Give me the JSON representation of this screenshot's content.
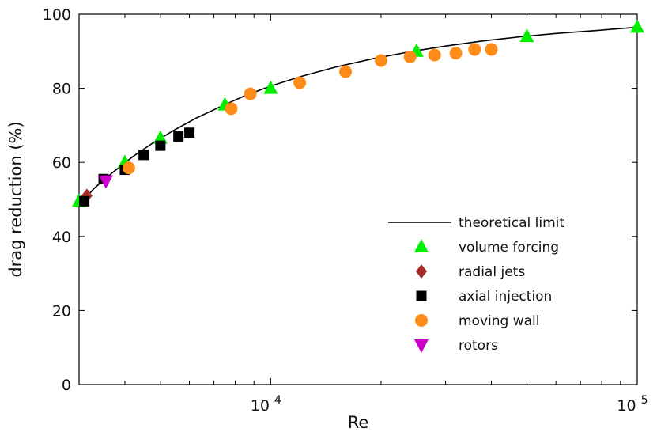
{
  "chart_data": {
    "type": "scatter",
    "title": "",
    "xlabel": "Re",
    "ylabel": "drag reduction (%)",
    "xscale": "log",
    "xlim": [
      3000,
      100000
    ],
    "ylim": [
      0,
      100
    ],
    "xticks": [
      {
        "value": 10000,
        "base": "10",
        "exp": "4"
      },
      {
        "value": 100000,
        "base": "10",
        "exp": "5"
      }
    ],
    "yticks": [
      0,
      20,
      40,
      60,
      80,
      100
    ],
    "grid": false,
    "legend_position": "lower-right",
    "theoretical_limit": {
      "name": "theoretical limit",
      "color": "#000000",
      "x": [
        3000,
        3300,
        3700,
        4200,
        4800,
        5500,
        6300,
        7500,
        8500,
        10000,
        12000,
        15000,
        19000,
        24000,
        30000,
        38000,
        48000,
        60000,
        75000,
        100000
      ],
      "y": [
        48.5,
        53,
        57.2,
        61.5,
        65.4,
        68.9,
        72.1,
        75.6,
        78,
        80.6,
        83.1,
        85.7,
        88,
        89.9,
        91.4,
        92.8,
        93.9,
        94.8,
        95.5,
        96.5
      ]
    },
    "series": [
      {
        "name": "volume forcing",
        "marker": "triangle-up",
        "color": "#00ee00",
        "x": [
          3000,
          4000,
          5000,
          7500,
          10000,
          25000,
          50000,
          100000
        ],
        "y": [
          49.5,
          60,
          66.5,
          75.5,
          80,
          90,
          94,
          96.5
        ]
      },
      {
        "name": "radial jets",
        "marker": "diamond",
        "color": "#a52a2a",
        "x": [
          3150
        ],
        "y": [
          51
        ]
      },
      {
        "name": "axial injection",
        "marker": "square",
        "color": "#000000",
        "x": [
          3100,
          3500,
          4000,
          4500,
          5000,
          5600,
          6000
        ],
        "y": [
          49.5,
          55.5,
          58,
          62,
          64.5,
          67,
          68
        ]
      },
      {
        "name": "moving wall",
        "marker": "circle",
        "color": "#ff8c1a",
        "x": [
          4100,
          7800,
          8800,
          12000,
          16000,
          20000,
          24000,
          28000,
          32000,
          36000,
          40000
        ],
        "y": [
          58.5,
          74.5,
          78.5,
          81.5,
          84.5,
          87.5,
          88.5,
          89,
          89.5,
          90.5,
          90.5
        ]
      },
      {
        "name": "rotors",
        "marker": "triangle-down",
        "color": "#cc00cc",
        "x": [
          3550
        ],
        "y": [
          55
        ]
      }
    ]
  }
}
